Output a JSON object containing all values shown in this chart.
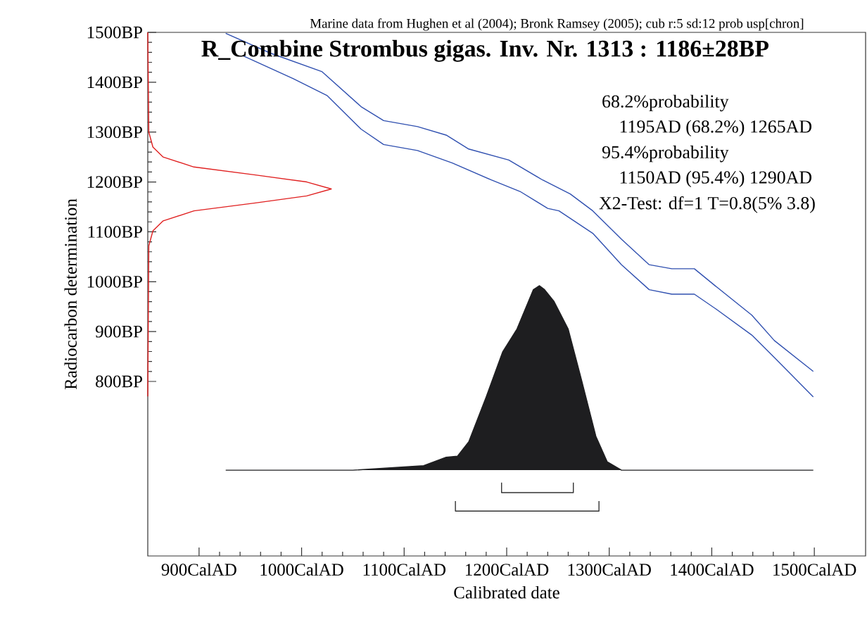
{
  "chart_data": {
    "type": "line",
    "title": "R_Combine Strombus gigas. Inv. Nr. 1313 : 1186±28BP",
    "xlabel": "Calibrated date",
    "ylabel": "Radiocarbon determination",
    "annotations": [
      "Marine data from Hughen et al (2004); Bronk Ramsey (2005); cub r:5 sd:12 prob usp[chron]",
      "68.2%probability",
      "1195AD (68.2%) 1265AD",
      "95.4%probability",
      "1150AD (95.4%) 1290AD",
      "X2-Test: df=1 T=0.8(5% 3.8)"
    ],
    "xlim": [
      850,
      1550
    ],
    "ylim": [
      450,
      1500
    ],
    "xticks": [
      {
        "value": 900,
        "label": "900CalAD"
      },
      {
        "value": 1000,
        "label": "1000CalAD"
      },
      {
        "value": 1100,
        "label": "1100CalAD"
      },
      {
        "value": 1200,
        "label": "1200CalAD"
      },
      {
        "value": 1300,
        "label": "1300CalAD"
      },
      {
        "value": 1400,
        "label": "1400CalAD"
      },
      {
        "value": 1500,
        "label": "1500CalAD"
      }
    ],
    "yticks": [
      {
        "value": 800,
        "label": "800BP"
      },
      {
        "value": 900,
        "label": "900BP"
      },
      {
        "value": 1000,
        "label": "1000BP"
      },
      {
        "value": 1100,
        "label": "1100BP"
      },
      {
        "value": 1200,
        "label": "1200BP"
      },
      {
        "value": 1300,
        "label": "1300BP"
      },
      {
        "value": 1400,
        "label": "1400BP"
      },
      {
        "value": 1500,
        "label": "1500BP"
      }
    ],
    "series": [
      {
        "color": "#3050b0",
        "x": [
          926,
          970,
          1020,
          1058,
          1080,
          1113,
          1141,
          1163,
          1202,
          1235,
          1262,
          1284,
          1312,
          1339,
          1361,
          1383,
          1405,
          1439,
          1461,
          1499
        ],
        "values": [
          1498,
          1458,
          1421,
          1351,
          1323,
          1311,
          1294,
          1266,
          1244,
          1204,
          1176,
          1142,
          1085,
          1034,
          1026,
          1026,
          989,
          933,
          882,
          820
        ]
      },
      {
        "color": "#3050b0",
        "x": [
          943,
          992,
          1025,
          1058,
          1080,
          1113,
          1147,
          1185,
          1213,
          1240,
          1251,
          1284,
          1312,
          1339,
          1361,
          1383,
          1405,
          1439,
          1461,
          1499
        ],
        "values": [
          1453,
          1407,
          1373,
          1306,
          1275,
          1263,
          1238,
          1204,
          1181,
          1147,
          1142,
          1097,
          1034,
          984,
          975,
          975,
          944,
          893,
          848,
          769
        ]
      },
      {
        "color": "#e02020",
        "x": [
          850,
          851,
          855,
          865,
          895,
          955,
          1005,
          1029,
          1005,
          955,
          895,
          865,
          855,
          851,
          850
        ],
        "values": [
          1500,
          1300,
          1270,
          1250,
          1230,
          1214,
          1200,
          1186,
          1172,
          1158,
          1142,
          1122,
          1102,
          1072,
          770
        ]
      },
      {
        "type": "area",
        "color": "#1e1e20",
        "x": [
          926,
          1050,
          1119,
          1141,
          1152,
          1163,
          1180,
          1196,
          1210,
          1226,
          1232,
          1237,
          1246,
          1260,
          1273,
          1287,
          1298,
          1312,
          1499
        ],
        "values": [
          622,
          622,
          631,
          648,
          650,
          679,
          769,
          859,
          905,
          984,
          992,
          984,
          961,
          905,
          803,
          690,
          639,
          622,
          622
        ]
      },
      {
        "color": "#333333",
        "x": [
          1195,
          1195,
          1265,
          1265
        ],
        "values": [
          597,
          577,
          577,
          597
        ]
      },
      {
        "color": "#333333",
        "x": [
          1150,
          1150,
          1290,
          1290
        ],
        "values": [
          560,
          540,
          540,
          560
        ]
      }
    ]
  }
}
